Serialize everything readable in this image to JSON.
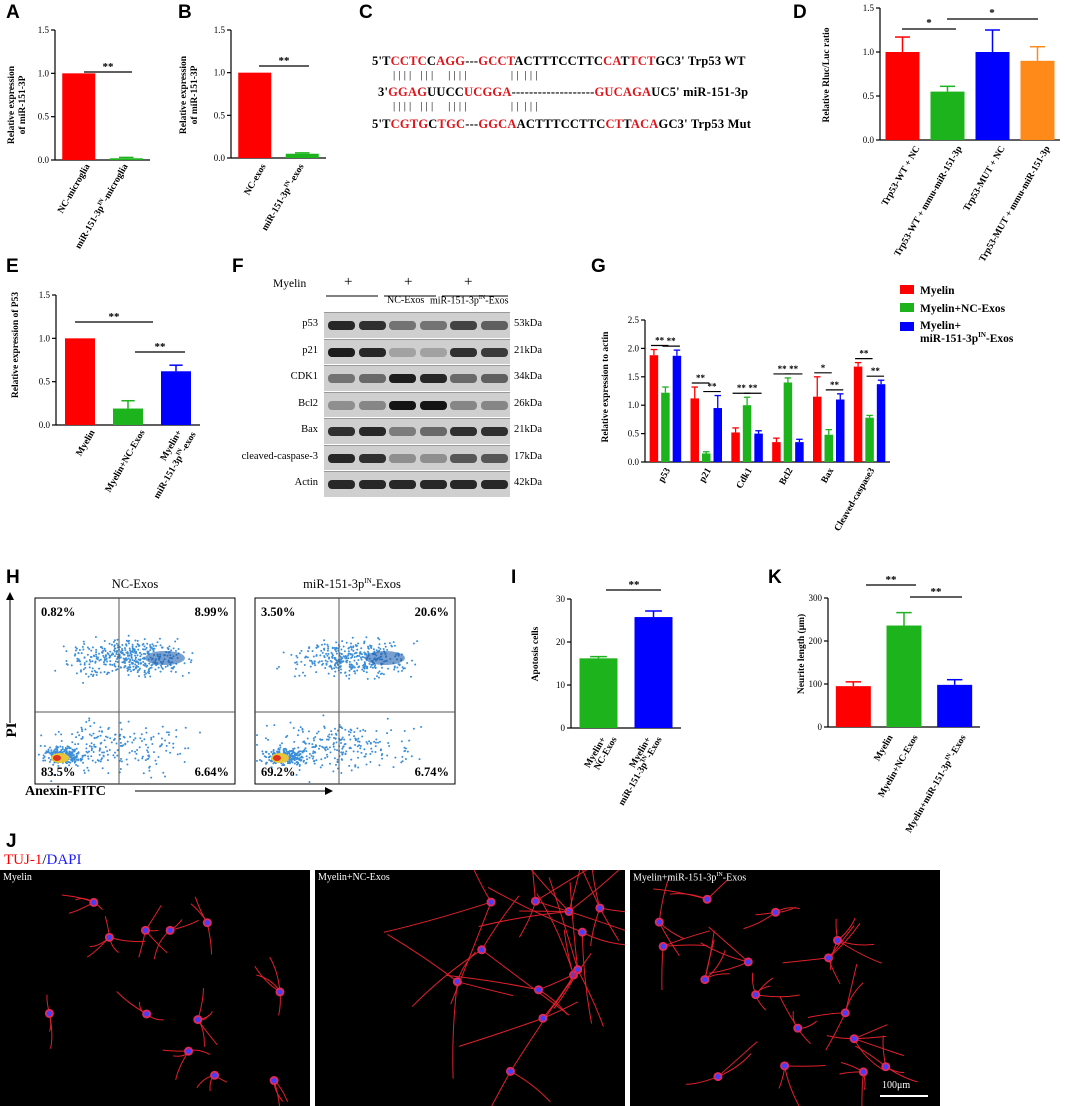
{
  "panels": {
    "A": {
      "letter": "A",
      "ylabel_line1": "Relative expression",
      "ylabel_line2": "of miR-151-3P",
      "sig": "**",
      "chart_data": {
        "type": "bar",
        "categories": [
          "NC-microglia",
          "miR-151-3pIN-microglia"
        ],
        "values": [
          1.0,
          0.02
        ],
        "errors": [
          0,
          0.01
        ],
        "colors": [
          "#ff0000",
          "#1db31d"
        ],
        "ylim": [
          0,
          1.5
        ],
        "yticks": [
          "0.0",
          "0.5",
          "1.0",
          "1.5"
        ]
      },
      "cat_labels": [
        "NC-microglia",
        "miR-151-3p",
        "IN",
        "-microglia"
      ]
    },
    "B": {
      "letter": "B",
      "ylabel_line1": "Relative expression",
      "ylabel_line2": "of miR-151-3P",
      "sig": "**",
      "chart_data": {
        "type": "bar",
        "categories": [
          "NC-exos",
          "miR-151-3pIN-exos"
        ],
        "values": [
          1.0,
          0.05
        ],
        "errors": [
          0,
          0.01
        ],
        "colors": [
          "#ff0000",
          "#1db31d"
        ],
        "ylim": [
          0,
          1.5
        ],
        "yticks": [
          "0.0",
          "0.5",
          "1.0",
          "1.5"
        ]
      },
      "cat_labels": [
        "NC-exos",
        "miR-151-3p",
        "IN",
        "-exos"
      ]
    },
    "C": {
      "letter": "C",
      "line1": [
        [
          "5'T",
          ""
        ],
        [
          "CCTC",
          "r"
        ],
        [
          "C",
          ""
        ],
        [
          "AGG",
          "r"
        ],
        [
          "---",
          ""
        ],
        [
          "GCCT",
          "r"
        ],
        [
          "ACTTTCCTTC",
          ""
        ],
        [
          "CA",
          "r"
        ],
        [
          "T",
          ""
        ],
        [
          "TCT",
          "r"
        ],
        [
          "GC3' Trp53 WT",
          ""
        ]
      ],
      "line2": [
        [
          "3'",
          ""
        ],
        [
          "GGAG",
          "r"
        ],
        [
          "UUCC",
          ""
        ],
        [
          "UCGGA",
          "r"
        ],
        [
          "-------------------",
          ""
        ],
        [
          "GU",
          "r"
        ],
        [
          "CAGA",
          "r"
        ],
        [
          "UC5' miR-151-3p",
          ""
        ]
      ],
      "line3": [
        [
          "5'T",
          ""
        ],
        [
          "CGTG",
          "r"
        ],
        [
          "C",
          ""
        ],
        [
          "TGC",
          "r"
        ],
        [
          "---",
          ""
        ],
        [
          "GGCA",
          "r"
        ],
        [
          "ACTTTCCTTC",
          ""
        ],
        [
          "CT",
          "r"
        ],
        [
          "T",
          ""
        ],
        [
          "ACA",
          "r"
        ],
        [
          "GC3' Trp53 Mut",
          ""
        ]
      ],
      "bars1": "| | | |   | | |     | | | |               | |  | | |",
      "bars2": "| | | |   | | |     | | | |               | |  | | |"
    },
    "D": {
      "letter": "D",
      "ylabel": "Relative Rluc/Luc ratio",
      "sig1": "*",
      "sig2": "*",
      "chart_data": {
        "type": "bar",
        "categories": [
          "Trp53-WT + NC",
          "Trp53-WT + mmu-miR-151-3p",
          "Trp53-MUT + NC",
          "Trp53-MUT + mmu-miR-151-3p"
        ],
        "values": [
          1.0,
          0.55,
          1.0,
          0.9
        ],
        "errors": [
          0.17,
          0.06,
          0.25,
          0.16
        ],
        "colors": [
          "#ff0000",
          "#1db31d",
          "#0000ff",
          "#ff8a1a"
        ],
        "ylim": [
          0,
          1.5
        ],
        "yticks": [
          "0.0",
          "0.5",
          "1.0",
          "1.5"
        ]
      }
    },
    "E": {
      "letter": "E",
      "ylabel": "Relative expression of P53",
      "sig1": "**",
      "sig2": "**",
      "chart_data": {
        "type": "bar",
        "categories": [
          "Myelin",
          "Myelin+NC-Exos",
          "Myelin+ miR-151-3pIN-exos"
        ],
        "values": [
          1.0,
          0.19,
          0.62
        ],
        "errors": [
          0,
          0.09,
          0.07
        ],
        "colors": [
          "#ff0000",
          "#1db31d",
          "#0000ff"
        ],
        "ylim": [
          0,
          1.5
        ],
        "yticks": [
          "0.0",
          "0.5",
          "1.0",
          "1.5"
        ]
      },
      "cat_labels": [
        "Myelin",
        "Myelin+NC-Exos",
        "Myelin+",
        "miR-151-3p",
        "IN",
        "-exos"
      ]
    },
    "F": {
      "letter": "F",
      "myelin_label": "Myelin",
      "plus": "+",
      "group_nc": "NC-Exos",
      "group_mir": "miR-151-3p",
      "group_mir_sup": "IN",
      "group_mir_end": "-Exos",
      "proteins": [
        "p53",
        "p21",
        "CDK1",
        "Bcl2",
        "Bax",
        "cleaved-caspase-3",
        "Actin"
      ],
      "kda": [
        "53kDa",
        "21kDa",
        "34kDa",
        "26kDa",
        "21kDa",
        "17kDa",
        "42kDa"
      ]
    },
    "G": {
      "letter": "G",
      "ylabel": "Relative expression to actin",
      "legend": [
        "Myelin",
        "Myelin+NC-Exos",
        "Myelin+",
        "miR-151-3p",
        "IN",
        "-Exos"
      ],
      "sig_single": "*",
      "sig": "**",
      "chart_data": {
        "type": "bar",
        "categories": [
          "p53",
          "p21",
          "Cdk1",
          "Bcl2",
          "Bax",
          "Cleaved-caspase3"
        ],
        "series": [
          {
            "name": "Myelin",
            "color": "#ff0000",
            "values": [
              1.88,
              1.12,
              0.52,
              0.35,
              1.15,
              1.68
            ],
            "errors": [
              0.1,
              0.2,
              0.08,
              0.07,
              0.35,
              0.07
            ]
          },
          {
            "name": "Myelin+NC-Exos",
            "color": "#1db31d",
            "values": [
              1.22,
              0.15,
              1.0,
              1.4,
              0.48,
              0.78
            ],
            "errors": [
              0.1,
              0.03,
              0.14,
              0.08,
              0.09,
              0.04
            ]
          },
          {
            "name": "Myelin+miR-151-3pIN-Exos",
            "color": "#0000ff",
            "values": [
              1.87,
              0.95,
              0.5,
              0.35,
              1.1,
              1.37
            ],
            "errors": [
              0.1,
              0.22,
              0.05,
              0.05,
              0.1,
              0.07
            ]
          }
        ],
        "ylim": [
          0,
          2.5
        ],
        "yticks": [
          "0.0",
          "0.5",
          "1.0",
          "1.5",
          "2.0",
          "2.5"
        ]
      }
    },
    "H": {
      "letter": "H",
      "title1": "NC-Exos",
      "title2_main": "miR-151-3p",
      "title2_sup": "IN",
      "title2_end": "-Exos",
      "q1": [
        "0.82%",
        "8.99%",
        "83.5%",
        "6.64%"
      ],
      "q2": [
        "3.50%",
        "20.6%",
        "69.2%",
        "6.74%"
      ],
      "ylabel": "PI",
      "xlabel": "Anexin-FITC"
    },
    "I": {
      "letter": "I",
      "ylabel": "Apotosis cells",
      "sig": "**",
      "chart_data": {
        "type": "bar",
        "categories": [
          "Myelin+ NC-Exos",
          "Myelin+ miR-151-3pIN-Exos"
        ],
        "values": [
          16.2,
          25.8
        ],
        "errors": [
          0.4,
          1.4
        ],
        "colors": [
          "#1db31d",
          "#0000ff"
        ],
        "ylim": [
          0,
          30
        ],
        "yticks": [
          "0",
          "10",
          "20",
          "30"
        ]
      },
      "cat_labels": [
        "Myelin+",
        "NC-Exos",
        "Myelin+",
        "miR-151-3p",
        "IN",
        "-Exos"
      ]
    },
    "K": {
      "letter": "K",
      "ylabel": "Neurite length (μm)",
      "sig1": "**",
      "sig2": "**",
      "chart_data": {
        "type": "bar",
        "categories": [
          "Myelin",
          "Myelin+NC-Exos",
          "Myelin+miR-151-3pIN-Exos"
        ],
        "values": [
          95,
          236,
          98
        ],
        "errors": [
          10,
          30,
          12
        ],
        "colors": [
          "#ff0000",
          "#1db31d",
          "#0000ff"
        ],
        "ylim": [
          0,
          300
        ],
        "yticks": [
          "0",
          "100",
          "200",
          "300"
        ]
      },
      "cat_labels": [
        "Myelin",
        "Myelin+NC-Exos",
        "Myelin+miR-151-3p",
        "IN",
        "-Exos"
      ]
    },
    "J": {
      "letter": "J",
      "stain_red": "TUJ-1",
      "stain_sep": "/",
      "stain_blue": "DAPI",
      "img1": "Myelin",
      "img2": "Myelin+NC-Exos",
      "img3_main": "Myelin+miR-151-3p",
      "img3_sup": "IN",
      "img3_end": "-Exos",
      "scale": "100μm"
    }
  }
}
